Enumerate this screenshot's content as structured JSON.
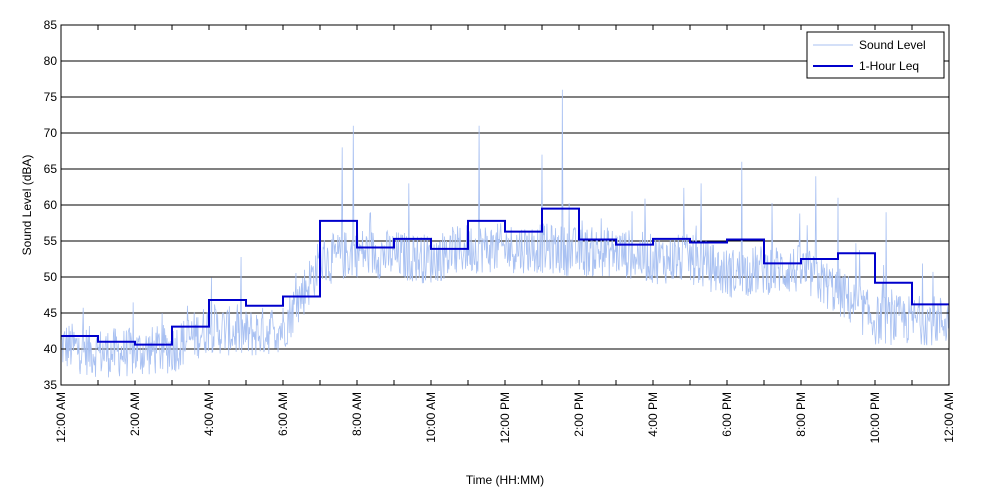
{
  "chart_data": {
    "type": "line",
    "xlabel": "Time (HH:MM)",
    "ylabel": "Sound Level (dBA)",
    "ylim": [
      35,
      85
    ],
    "yticks": [
      35,
      40,
      45,
      50,
      55,
      60,
      65,
      70,
      75,
      80,
      85
    ],
    "xlim_hours": [
      0,
      24
    ],
    "x_tick_hours": [
      0,
      2,
      4,
      6,
      8,
      10,
      12,
      14,
      16,
      18,
      20,
      22,
      24
    ],
    "x_tick_labels": [
      "12:00 AM",
      "2:00 AM",
      "4:00 AM",
      "6:00 AM",
      "8:00 AM",
      "10:00 AM",
      "12:00 PM",
      "2:00 PM",
      "4:00 PM",
      "6:00 PM",
      "8:00 PM",
      "10:00 PM",
      "12:00 AM"
    ],
    "grid": "horizontal",
    "legend_position": "top-right",
    "series": [
      {
        "name": "Sound Level",
        "color": "#a9c1f2",
        "style": "thin-noisy-line",
        "hourly_baseline": [
          40.5,
          39.5,
          39.5,
          40,
          43,
          42,
          43,
          52,
          53.5,
          53,
          52.5,
          54,
          54,
          54,
          53.5,
          53.5,
          52.5,
          52.5,
          50.5,
          51,
          51,
          48,
          44,
          44
        ],
        "peaks": [
          {
            "hour": 7.6,
            "value": 68
          },
          {
            "hour": 7.9,
            "value": 71
          },
          {
            "hour": 9.4,
            "value": 63
          },
          {
            "hour": 11.3,
            "value": 71
          },
          {
            "hour": 13.55,
            "value": 76
          },
          {
            "hour": 13.0,
            "value": 67
          },
          {
            "hour": 17.3,
            "value": 63
          },
          {
            "hour": 18.4,
            "value": 66
          },
          {
            "hour": 20.4,
            "value": 64
          },
          {
            "hour": 22.3,
            "value": 59
          },
          {
            "hour": 21.0,
            "value": 61
          }
        ]
      },
      {
        "name": "1-Hour Leq",
        "color": "#0000cc",
        "style": "step",
        "hours": [
          0,
          1,
          2,
          3,
          4,
          5,
          6,
          7,
          8,
          9,
          10,
          11,
          12,
          13,
          14,
          15,
          16,
          17,
          18,
          19,
          20,
          21,
          22,
          23
        ],
        "values": [
          41.8,
          41.0,
          40.6,
          43.1,
          46.8,
          46.0,
          47.3,
          57.8,
          54.1,
          55.3,
          53.9,
          57.8,
          56.3,
          59.5,
          55.2,
          54.5,
          55.3,
          54.8,
          55.2,
          51.9,
          52.5,
          53.3,
          49.2,
          46.2
        ]
      }
    ]
  }
}
